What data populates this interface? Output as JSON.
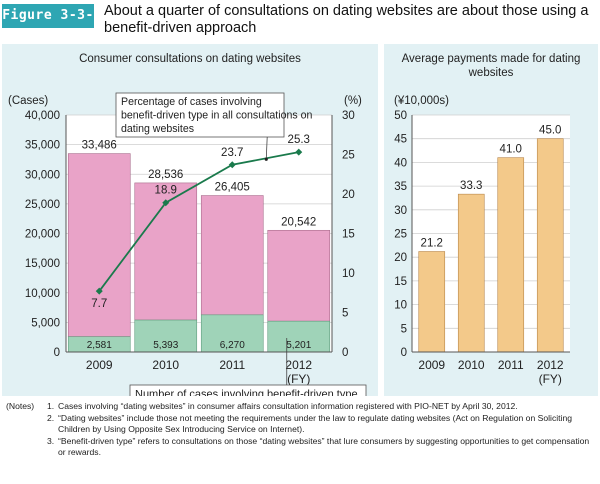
{
  "figure_label": "Figure 3-3-9",
  "figure_title": "About a quarter of consultations on dating websites are about those using a benefit-driven approach",
  "chart_data": [
    {
      "type": "bar",
      "title": "Consumer consultations on dating websites",
      "categories": [
        "2009",
        "2010",
        "2011",
        "2012"
      ],
      "category_suffix": [
        "",
        "",
        "",
        "(FY)"
      ],
      "ylabel": "(Cases)",
      "ylim": [
        0,
        40000
      ],
      "yticks": [
        0,
        5000,
        10000,
        15000,
        20000,
        25000,
        30000,
        35000,
        40000
      ],
      "ytick_labels": [
        "0",
        "5,000",
        "10,000",
        "15,000",
        "20,000",
        "25,000",
        "30,000",
        "35,000",
        "40,000"
      ],
      "y2label": "(%)",
      "y2lim": [
        0,
        30
      ],
      "y2ticks": [
        "0",
        "5",
        "10",
        "15",
        "20",
        "25",
        "30"
      ],
      "series": [
        {
          "name": "Number of cases involving benefit-driven type",
          "values": [
            2581,
            5393,
            6270,
            5201
          ],
          "labels": [
            "2,581",
            "5,393",
            "6,270",
            "5,201"
          ],
          "color": "#9fd3b8"
        },
        {
          "name": "Total consultations",
          "values": [
            33486,
            28536,
            26405,
            20542
          ],
          "labels": [
            "33,486",
            "28,536",
            "26,405",
            "20,542"
          ],
          "color": "#e9a3c8"
        },
        {
          "name": "Percentage of cases involving benefit-driven type in all consultations on dating websites",
          "axis": "right",
          "values": [
            7.7,
            18.9,
            23.7,
            25.3
          ],
          "labels": [
            "7.7",
            "18.9",
            "23.7",
            "25.3"
          ],
          "color": "#1a7a4c"
        }
      ],
      "annotations": {
        "line_callout": "Percentage of cases involving benefit-driven type in all consul­tations on dating websites",
        "bar_callout": "Number of cases involving benefit-driven type"
      }
    },
    {
      "type": "bar",
      "title": "Average payments made for dating websites",
      "categories": [
        "2009",
        "2010",
        "2011",
        "2012"
      ],
      "category_suffix": [
        "",
        "",
        "",
        "(FY)"
      ],
      "ylabel": "(¥10,000s)",
      "ylim": [
        0,
        50
      ],
      "yticks": [
        "0",
        "5",
        "10",
        "15",
        "20",
        "25",
        "30",
        "35",
        "40",
        "45",
        "50"
      ],
      "values": [
        21.2,
        33.3,
        41.0,
        45.0
      ],
      "labels": [
        "21.2",
        "33.3",
        "41.0",
        "45.0"
      ],
      "color": "#f3c98a"
    }
  ],
  "notes": {
    "heading": "(Notes)",
    "items": [
      {
        "num": "1.",
        "text": "Cases involving “dating websites” in consumer affairs consultation information registered with PIO-NET by April 30, 2012."
      },
      {
        "num": "2.",
        "text": "“Dating websites” include those not meeting the requirements under the law to regulate dating websites (Act on Regulation on Soliciting Children by Using Opposite Sex Introducing Service on Internet)."
      },
      {
        "num": "3.",
        "text": "“Benefit-driven type” refers to consultations on those “dating websites” that lure consumers by suggesting opportunities to get compensation or rewards."
      }
    ]
  }
}
